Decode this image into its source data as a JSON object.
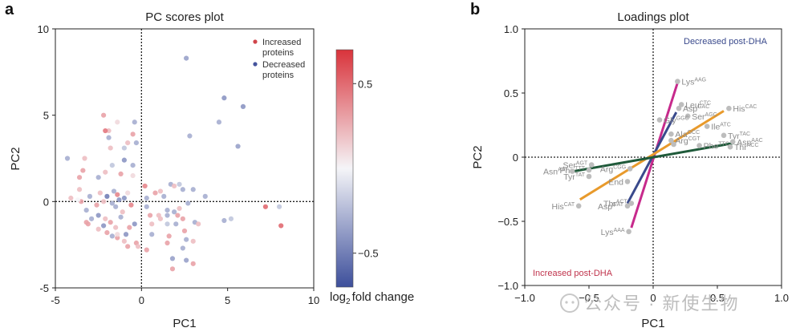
{
  "chart_data": [
    {
      "panel": "a",
      "type": "scatter",
      "title": "PC scores plot",
      "xlabel": "PC1",
      "ylabel": "PC2",
      "xlim": [
        -5,
        10
      ],
      "ylim": [
        -5,
        10
      ],
      "xticks": [
        "-5",
        "0",
        "5",
        "10"
      ],
      "yticks": [
        "-5",
        "0",
        "5",
        "10"
      ],
      "legend": {
        "placement": "top-right",
        "items": [
          "Increased proteins",
          "Decreased proteins"
        ],
        "colors": [
          "#d0454b",
          "#44539c"
        ]
      },
      "colorbar": {
        "label": "log2 fold change",
        "label_main": "log",
        "label_sub": "2",
        "label_rest": "fold change",
        "ticks": [
          "0.5",
          "−0.5"
        ],
        "tick_values": [
          0.5,
          -0.5
        ],
        "range": [
          -0.7,
          0.7
        ],
        "colors": [
          "#3d4f9b",
          "#f5f5f8",
          "#d9333b"
        ]
      },
      "points": [
        {
          "x": 2.6,
          "y": 8.3,
          "v": -0.35
        },
        {
          "x": 4.8,
          "y": 6.0,
          "v": -0.4
        },
        {
          "x": 5.9,
          "y": 5.5,
          "v": -0.4
        },
        {
          "x": 4.5,
          "y": 4.6,
          "v": -0.3
        },
        {
          "x": 2.8,
          "y": 3.8,
          "v": -0.3
        },
        {
          "x": 5.6,
          "y": 3.2,
          "v": -0.35
        },
        {
          "x": -2.2,
          "y": 5.0,
          "v": 0.3
        },
        {
          "x": -1.4,
          "y": 4.6,
          "v": 0.1
        },
        {
          "x": -0.4,
          "y": 4.6,
          "v": -0.3
        },
        {
          "x": -1.9,
          "y": 4.1,
          "v": 0.2
        },
        {
          "x": -0.5,
          "y": 3.9,
          "v": 0.3
        },
        {
          "x": -1.9,
          "y": 3.7,
          "v": -0.3
        },
        {
          "x": -2.1,
          "y": 4.1,
          "v": 0.45
        },
        {
          "x": -0.3,
          "y": 3.4,
          "v": -0.3
        },
        {
          "x": -1.8,
          "y": 3.1,
          "v": 0.2
        },
        {
          "x": -1.0,
          "y": 3.1,
          "v": -0.2
        },
        {
          "x": -0.8,
          "y": 3.4,
          "v": 0.2
        },
        {
          "x": -3.3,
          "y": 2.5,
          "v": 0.2
        },
        {
          "x": -1.0,
          "y": 2.4,
          "v": -0.4
        },
        {
          "x": -3.4,
          "y": 1.8,
          "v": 0.3
        },
        {
          "x": -2.1,
          "y": 1.7,
          "v": 0.2
        },
        {
          "x": -1.7,
          "y": 2.1,
          "v": -0.2
        },
        {
          "x": -4.3,
          "y": 2.5,
          "v": -0.3
        },
        {
          "x": -1.2,
          "y": 1.6,
          "v": 0.3
        },
        {
          "x": -0.5,
          "y": 2.1,
          "v": -0.3
        },
        {
          "x": -2.5,
          "y": 1.4,
          "v": -0.3
        },
        {
          "x": -3.6,
          "y": 1.4,
          "v": 0.3
        },
        {
          "x": -0.5,
          "y": 1.5,
          "v": 0.1
        },
        {
          "x": -3.6,
          "y": 0.7,
          "v": 0.2
        },
        {
          "x": -2.4,
          "y": 0.5,
          "v": 0.2
        },
        {
          "x": -1.6,
          "y": 0.6,
          "v": -0.3
        },
        {
          "x": -1.4,
          "y": 0.4,
          "v": 0.4
        },
        {
          "x": -1.0,
          "y": 0.2,
          "v": -0.4
        },
        {
          "x": -0.8,
          "y": 0.5,
          "v": 0.1
        },
        {
          "x": -3.0,
          "y": 0.3,
          "v": -0.3
        },
        {
          "x": -3.5,
          "y": 0.0,
          "v": 0.3
        },
        {
          "x": -2.0,
          "y": 0.3,
          "v": -0.5
        },
        {
          "x": -1.3,
          "y": 0.1,
          "v": -0.4
        },
        {
          "x": -0.6,
          "y": -0.2,
          "v": 0.4
        },
        {
          "x": -3.7,
          "y": 0.1,
          "v": 0.0
        },
        {
          "x": -2.2,
          "y": 0.0,
          "v": 0.2
        },
        {
          "x": -4.1,
          "y": 0.2,
          "v": 0.2
        },
        {
          "x": -1.7,
          "y": -0.1,
          "v": -0.3
        },
        {
          "x": -1.5,
          "y": -0.3,
          "v": -0.3
        },
        {
          "x": -2.6,
          "y": -0.2,
          "v": 0.3
        },
        {
          "x": -3.2,
          "y": -0.5,
          "v": -0.3
        },
        {
          "x": -1.1,
          "y": -0.6,
          "v": 0.2
        },
        {
          "x": -2.5,
          "y": -0.8,
          "v": -0.4
        },
        {
          "x": -2.1,
          "y": -1.0,
          "v": 0.2
        },
        {
          "x": -3.1,
          "y": -1.3,
          "v": 0.3
        },
        {
          "x": -1.2,
          "y": -0.9,
          "v": -0.3
        },
        {
          "x": -2.9,
          "y": -1.0,
          "v": -0.3
        },
        {
          "x": -1.5,
          "y": -1.5,
          "v": 0.2
        },
        {
          "x": -2.2,
          "y": -1.4,
          "v": -0.4
        },
        {
          "x": -1.8,
          "y": -1.2,
          "v": 0.3
        },
        {
          "x": -0.4,
          "y": -1.3,
          "v": -0.4
        },
        {
          "x": -0.7,
          "y": -1.5,
          "v": 0.3
        },
        {
          "x": -2.0,
          "y": -1.8,
          "v": 0.3
        },
        {
          "x": -1.7,
          "y": -2.0,
          "v": -0.3
        },
        {
          "x": -0.9,
          "y": -1.9,
          "v": -0.4
        },
        {
          "x": -2.5,
          "y": -1.6,
          "v": 0.2
        },
        {
          "x": -1.4,
          "y": -2.1,
          "v": 0.3
        },
        {
          "x": -1.0,
          "y": -2.3,
          "v": 0.2
        },
        {
          "x": -0.3,
          "y": -2.4,
          "v": 0.3
        },
        {
          "x": -1.4,
          "y": -1.9,
          "v": 0.1
        },
        {
          "x": -3.2,
          "y": -1.2,
          "v": 0.3
        },
        {
          "x": -0.2,
          "y": -2.6,
          "v": 0.2
        },
        {
          "x": 0.3,
          "y": -2.8,
          "v": 0.3
        },
        {
          "x": -0.8,
          "y": -2.6,
          "v": 0.3
        },
        {
          "x": 0.6,
          "y": -1.9,
          "v": -0.3
        },
        {
          "x": 0.2,
          "y": 0.9,
          "v": 0.4
        },
        {
          "x": 0.3,
          "y": 0.2,
          "v": -0.3
        },
        {
          "x": 0.8,
          "y": 0.5,
          "v": 0.3
        },
        {
          "x": 1.1,
          "y": 0.6,
          "v": 0.2
        },
        {
          "x": 0.3,
          "y": -0.3,
          "v": -0.3
        },
        {
          "x": 0.5,
          "y": -0.8,
          "v": 0.3
        },
        {
          "x": 1.0,
          "y": -0.8,
          "v": 0.2
        },
        {
          "x": 1.1,
          "y": -1.0,
          "v": 0.2
        },
        {
          "x": 1.5,
          "y": -0.5,
          "v": -0.3
        },
        {
          "x": 1.5,
          "y": -0.8,
          "v": -0.3
        },
        {
          "x": 1.3,
          "y": 0.3,
          "v": -0.3
        },
        {
          "x": 1.7,
          "y": 1.0,
          "v": -0.3
        },
        {
          "x": 1.9,
          "y": 0.9,
          "v": 0.2
        },
        {
          "x": 2.4,
          "y": 0.7,
          "v": -0.3
        },
        {
          "x": 2.2,
          "y": 1.0,
          "v": -0.2
        },
        {
          "x": 3.0,
          "y": 0.7,
          "v": -0.3
        },
        {
          "x": 3.7,
          "y": 0.3,
          "v": -0.3
        },
        {
          "x": 2.7,
          "y": -0.1,
          "v": -0.3
        },
        {
          "x": 2.2,
          "y": -0.4,
          "v": 0.2
        },
        {
          "x": 1.9,
          "y": -0.6,
          "v": -0.3
        },
        {
          "x": 2.1,
          "y": -0.8,
          "v": 0.3
        },
        {
          "x": 2.4,
          "y": -1.0,
          "v": 0.3
        },
        {
          "x": 2.0,
          "y": -1.3,
          "v": -0.3
        },
        {
          "x": 1.5,
          "y": -1.3,
          "v": -0.2
        },
        {
          "x": 3.1,
          "y": -1.2,
          "v": -0.3
        },
        {
          "x": 3.3,
          "y": -1.3,
          "v": 0.2
        },
        {
          "x": 2.5,
          "y": -1.7,
          "v": 0.3
        },
        {
          "x": 1.6,
          "y": -2.0,
          "v": 0.3
        },
        {
          "x": 2.6,
          "y": -2.2,
          "v": -0.3
        },
        {
          "x": 3.0,
          "y": -2.3,
          "v": 0.2
        },
        {
          "x": 1.5,
          "y": -2.4,
          "v": 0.3
        },
        {
          "x": 2.4,
          "y": -2.7,
          "v": -0.3
        },
        {
          "x": 4.8,
          "y": -1.1,
          "v": -0.3
        },
        {
          "x": 5.2,
          "y": -1.0,
          "v": -0.2
        },
        {
          "x": 2.6,
          "y": -3.4,
          "v": -0.35
        },
        {
          "x": 3.0,
          "y": -3.6,
          "v": 0.3
        },
        {
          "x": 1.8,
          "y": -3.3,
          "v": -0.35
        },
        {
          "x": 1.8,
          "y": -3.9,
          "v": 0.3
        },
        {
          "x": 0.6,
          "y": -1.3,
          "v": 0.2
        },
        {
          "x": 7.2,
          "y": -0.3,
          "v": 0.5
        },
        {
          "x": 8.0,
          "y": -0.3,
          "v": -0.2
        },
        {
          "x": 8.1,
          "y": -1.4,
          "v": 0.5
        }
      ]
    },
    {
      "panel": "b",
      "type": "scatter",
      "title": "Loadings plot",
      "xlabel": "PC1",
      "ylabel": "PC2",
      "xlim": [
        -1.0,
        1.0
      ],
      "ylim": [
        -1.0,
        1.0
      ],
      "xticks": [
        "−1.0",
        "−0.5",
        "0",
        "0.5",
        "1.0"
      ],
      "yticks": [
        "−1.0",
        "−0.5",
        "0",
        "0.5",
        "1.0"
      ],
      "annotations": [
        {
          "text": "Decreased post-DHA",
          "color": "#3a4a8c",
          "placement": "top-right"
        },
        {
          "text": "Increased post-DHA",
          "color": "#c0344d",
          "placement": "bottom-left"
        }
      ],
      "lines": [
        {
          "name": "Lys",
          "color": "#c72a8c",
          "from": [
            -0.17,
            -0.55
          ],
          "to": [
            0.19,
            0.58
          ]
        },
        {
          "name": "Asp",
          "color": "#3a4a8c",
          "from": [
            -0.2,
            -0.36
          ],
          "to": [
            0.18,
            0.35
          ]
        },
        {
          "name": "Asn",
          "color": "#e89a2c",
          "from": [
            -0.57,
            -0.33
          ],
          "to": [
            0.55,
            0.36
          ]
        },
        {
          "name": "Thr",
          "color": "#1f5a3a",
          "from": [
            -0.62,
            -0.11
          ],
          "to": [
            0.63,
            0.11
          ]
        }
      ],
      "points": [
        {
          "x": 0.19,
          "y": 0.59,
          "label": "Lys",
          "sup": "AAG"
        },
        {
          "x": 0.22,
          "y": 0.41,
          "label": "Leu",
          "sup": "CTC"
        },
        {
          "x": 0.2,
          "y": 0.38,
          "label": "Asp",
          "sup": "GAC"
        },
        {
          "x": 0.59,
          "y": 0.38,
          "label": "His",
          "sup": "CAC"
        },
        {
          "x": 0.27,
          "y": 0.32,
          "label": "Ser",
          "sup": "AGC"
        },
        {
          "x": 0.05,
          "y": 0.29,
          "label": "Gly",
          "sup": "GGC"
        },
        {
          "x": 0.42,
          "y": 0.24,
          "label": "Ile",
          "sup": "ATC"
        },
        {
          "x": 0.14,
          "y": 0.18,
          "label": "Ala",
          "sup": "GCC"
        },
        {
          "x": 0.55,
          "y": 0.17,
          "label": "Tyr",
          "sup": "TAC"
        },
        {
          "x": 0.62,
          "y": 0.12,
          "label": "Asn",
          "sup": "AAC"
        },
        {
          "x": 0.14,
          "y": 0.13,
          "label": "Arg",
          "sup": "CGT"
        },
        {
          "x": 0.16,
          "y": 0.1,
          "label": "",
          "sup": ""
        },
        {
          "x": 0.6,
          "y": 0.08,
          "label": "Thr",
          "sup": "ACC"
        },
        {
          "x": 0.36,
          "y": 0.09,
          "label": "Phe",
          "sup": "TTC"
        },
        {
          "x": -0.48,
          "y": -0.06,
          "label": "Ser",
          "sup": "AGT"
        },
        {
          "x": -0.5,
          "y": -0.1,
          "label": "Phe",
          "sup": "TTT"
        },
        {
          "x": -0.63,
          "y": -0.11,
          "label": "Asn",
          "sup": "AAT"
        },
        {
          "x": -0.5,
          "y": -0.15,
          "label": "Tyr",
          "sup": "TAT"
        },
        {
          "x": -0.18,
          "y": -0.09,
          "label": "Arg",
          "sup": "CGG"
        },
        {
          "x": -0.2,
          "y": -0.19,
          "label": "End",
          "sup": ""
        },
        {
          "x": -0.58,
          "y": -0.38,
          "label": "His",
          "sup": "CAT"
        },
        {
          "x": -0.17,
          "y": -0.36,
          "label": "Thr",
          "sup": "ACT"
        },
        {
          "x": -0.2,
          "y": -0.38,
          "label": "Asp",
          "sup": "GAT"
        },
        {
          "x": -0.19,
          "y": -0.58,
          "label": "Lys",
          "sup": "AAA"
        }
      ]
    }
  ],
  "figure": {
    "panel_letters": [
      "a",
      "b"
    ],
    "watermark": "公众号 · 新使生物"
  }
}
